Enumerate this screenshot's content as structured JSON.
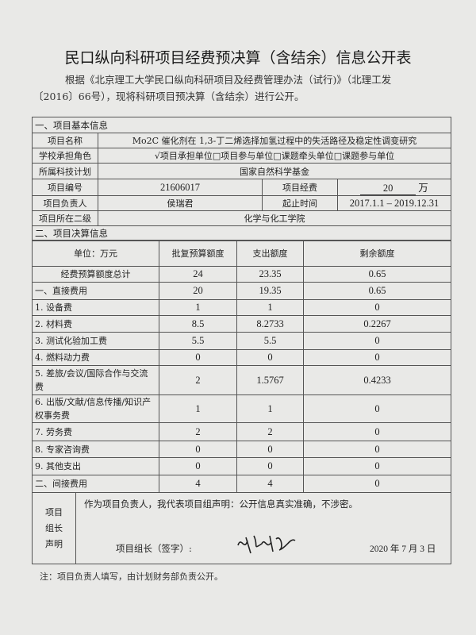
{
  "title": "民口纵向科研项目经费预决算（含结余）信息公开表",
  "intro": {
    "line1": "根据《北京理工大学民口纵向科研项目及经费管理办法（试行)》（北理工发",
    "line2": "〔2016〕66号），现将科研项目预决算（含结余）进行公开。"
  },
  "basic": {
    "section": "一、项目基本信息",
    "name_label": "项目名称",
    "name_value": "Mo2C 催化剂在 1,3-丁二烯选择加氢过程中的失活路径及稳定性调变研究",
    "role_label": "学校承担角色",
    "role_value": "√项目承担单位□项目参与单位□课题牵头单位□课题参与单位",
    "plan_label": "所属科技计划",
    "plan_value": "国家自然科学基金",
    "number_label": "项目编号",
    "number_value": "21606017",
    "fee_label": "项目经费",
    "fee_value": "20",
    "fee_unit": "万",
    "leader_label": "项目负责人",
    "leader_value": "侯瑞君",
    "period_label": "起止时间",
    "period_value": "2017.1.1 – 2019.12.31",
    "dept_label": "项目所在二级",
    "dept_value": "化学与化工学院"
  },
  "budget": {
    "section": "二、项目决算信息",
    "headers": [
      "单位：万元",
      "批复预算额度",
      "支出额度",
      "剩余额度"
    ],
    "rows": [
      {
        "item": "经费预算额度总计",
        "approved": "24",
        "spent": "23.35",
        "remaining": "0.65"
      },
      {
        "item": "一、直接费用",
        "approved": "20",
        "spent": "19.35",
        "remaining": "0.65"
      },
      {
        "item": "1. 设备费",
        "approved": "1",
        "spent": "1",
        "remaining": "0"
      },
      {
        "item": "2. 材料费",
        "approved": "8.5",
        "spent": "8.2733",
        "remaining": "0.2267"
      },
      {
        "item": "3. 测试化验加工费",
        "approved": "5.5",
        "spent": "5.5",
        "remaining": "0"
      },
      {
        "item": "4. 燃料动力费",
        "approved": "0",
        "spent": "0",
        "remaining": "0"
      },
      {
        "item": "5. 差旅/会议/国际合作与交流费",
        "approved": "2",
        "spent": "1.5767",
        "remaining": "0.4233"
      },
      {
        "item": "6. 出版/文献/信息传播/知识产权事务费",
        "approved": "1",
        "spent": "1",
        "remaining": "0"
      },
      {
        "item": "7. 劳务费",
        "approved": "2",
        "spent": "2",
        "remaining": "0"
      },
      {
        "item": "8. 专家咨询费",
        "approved": "0",
        "spent": "0",
        "remaining": "0"
      },
      {
        "item": "9. 其他支出",
        "approved": "0",
        "spent": "0",
        "remaining": "0"
      },
      {
        "item": "二、间接费用",
        "approved": "4",
        "spent": "4",
        "remaining": "0"
      }
    ]
  },
  "declaration": {
    "label": "项目组长声明",
    "text": "作为项目负责人，我代表项目组声明：公开信息真实准确，不涉密。",
    "sign_label": "项目组长（签字）:",
    "signature": "侯瑞君",
    "date": "2020 年 7 月 3 日"
  },
  "note": "注：项目负责人填写，由计划财务部负责公开。"
}
